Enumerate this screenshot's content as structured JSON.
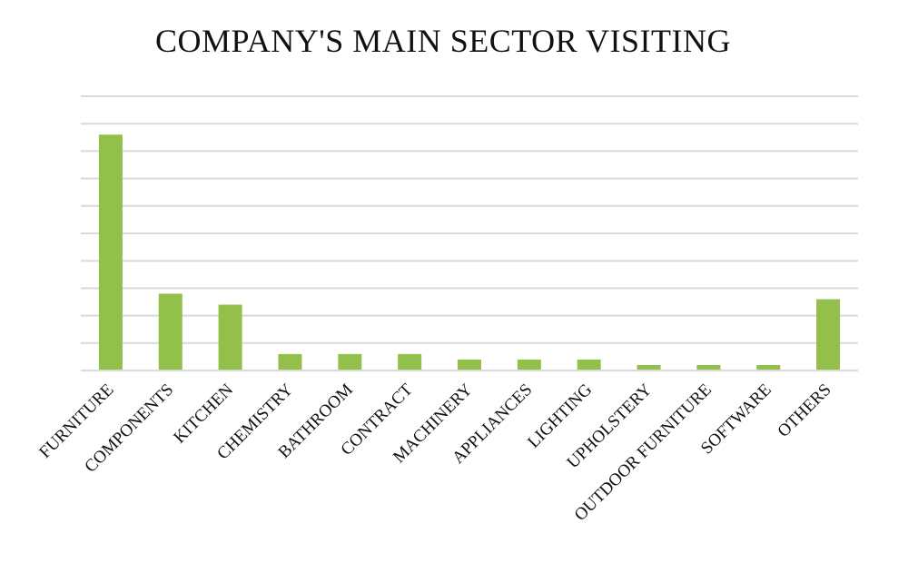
{
  "chart_data": {
    "type": "bar",
    "title": "COMPANY'S MAIN SECTOR VISITING",
    "categories": [
      "FURNITURE",
      "COMPONENTS",
      "KITCHEN",
      "CHEMISTRY",
      "BATHROOM",
      "CONTRACT",
      "MACHINERY",
      "APPLIANCES",
      "LIGHTING",
      "UPHOLSTERY",
      "OUTDOOR FURNITURE",
      "SOFTWARE",
      "OTHERS"
    ],
    "series": [
      {
        "values": [
          86,
          28,
          24,
          6,
          6,
          6,
          4,
          4,
          4,
          2,
          2,
          2,
          26
        ]
      }
    ],
    "ylim": [
      0,
      100
    ],
    "y_tick_step": 10,
    "grid": true,
    "y_tick_labels_visible": false,
    "legend": "none",
    "colors": {
      "bar": "#92C04A",
      "grid": "#D9D9D9",
      "axis": "#D9D9D9",
      "text": "#111111"
    }
  }
}
